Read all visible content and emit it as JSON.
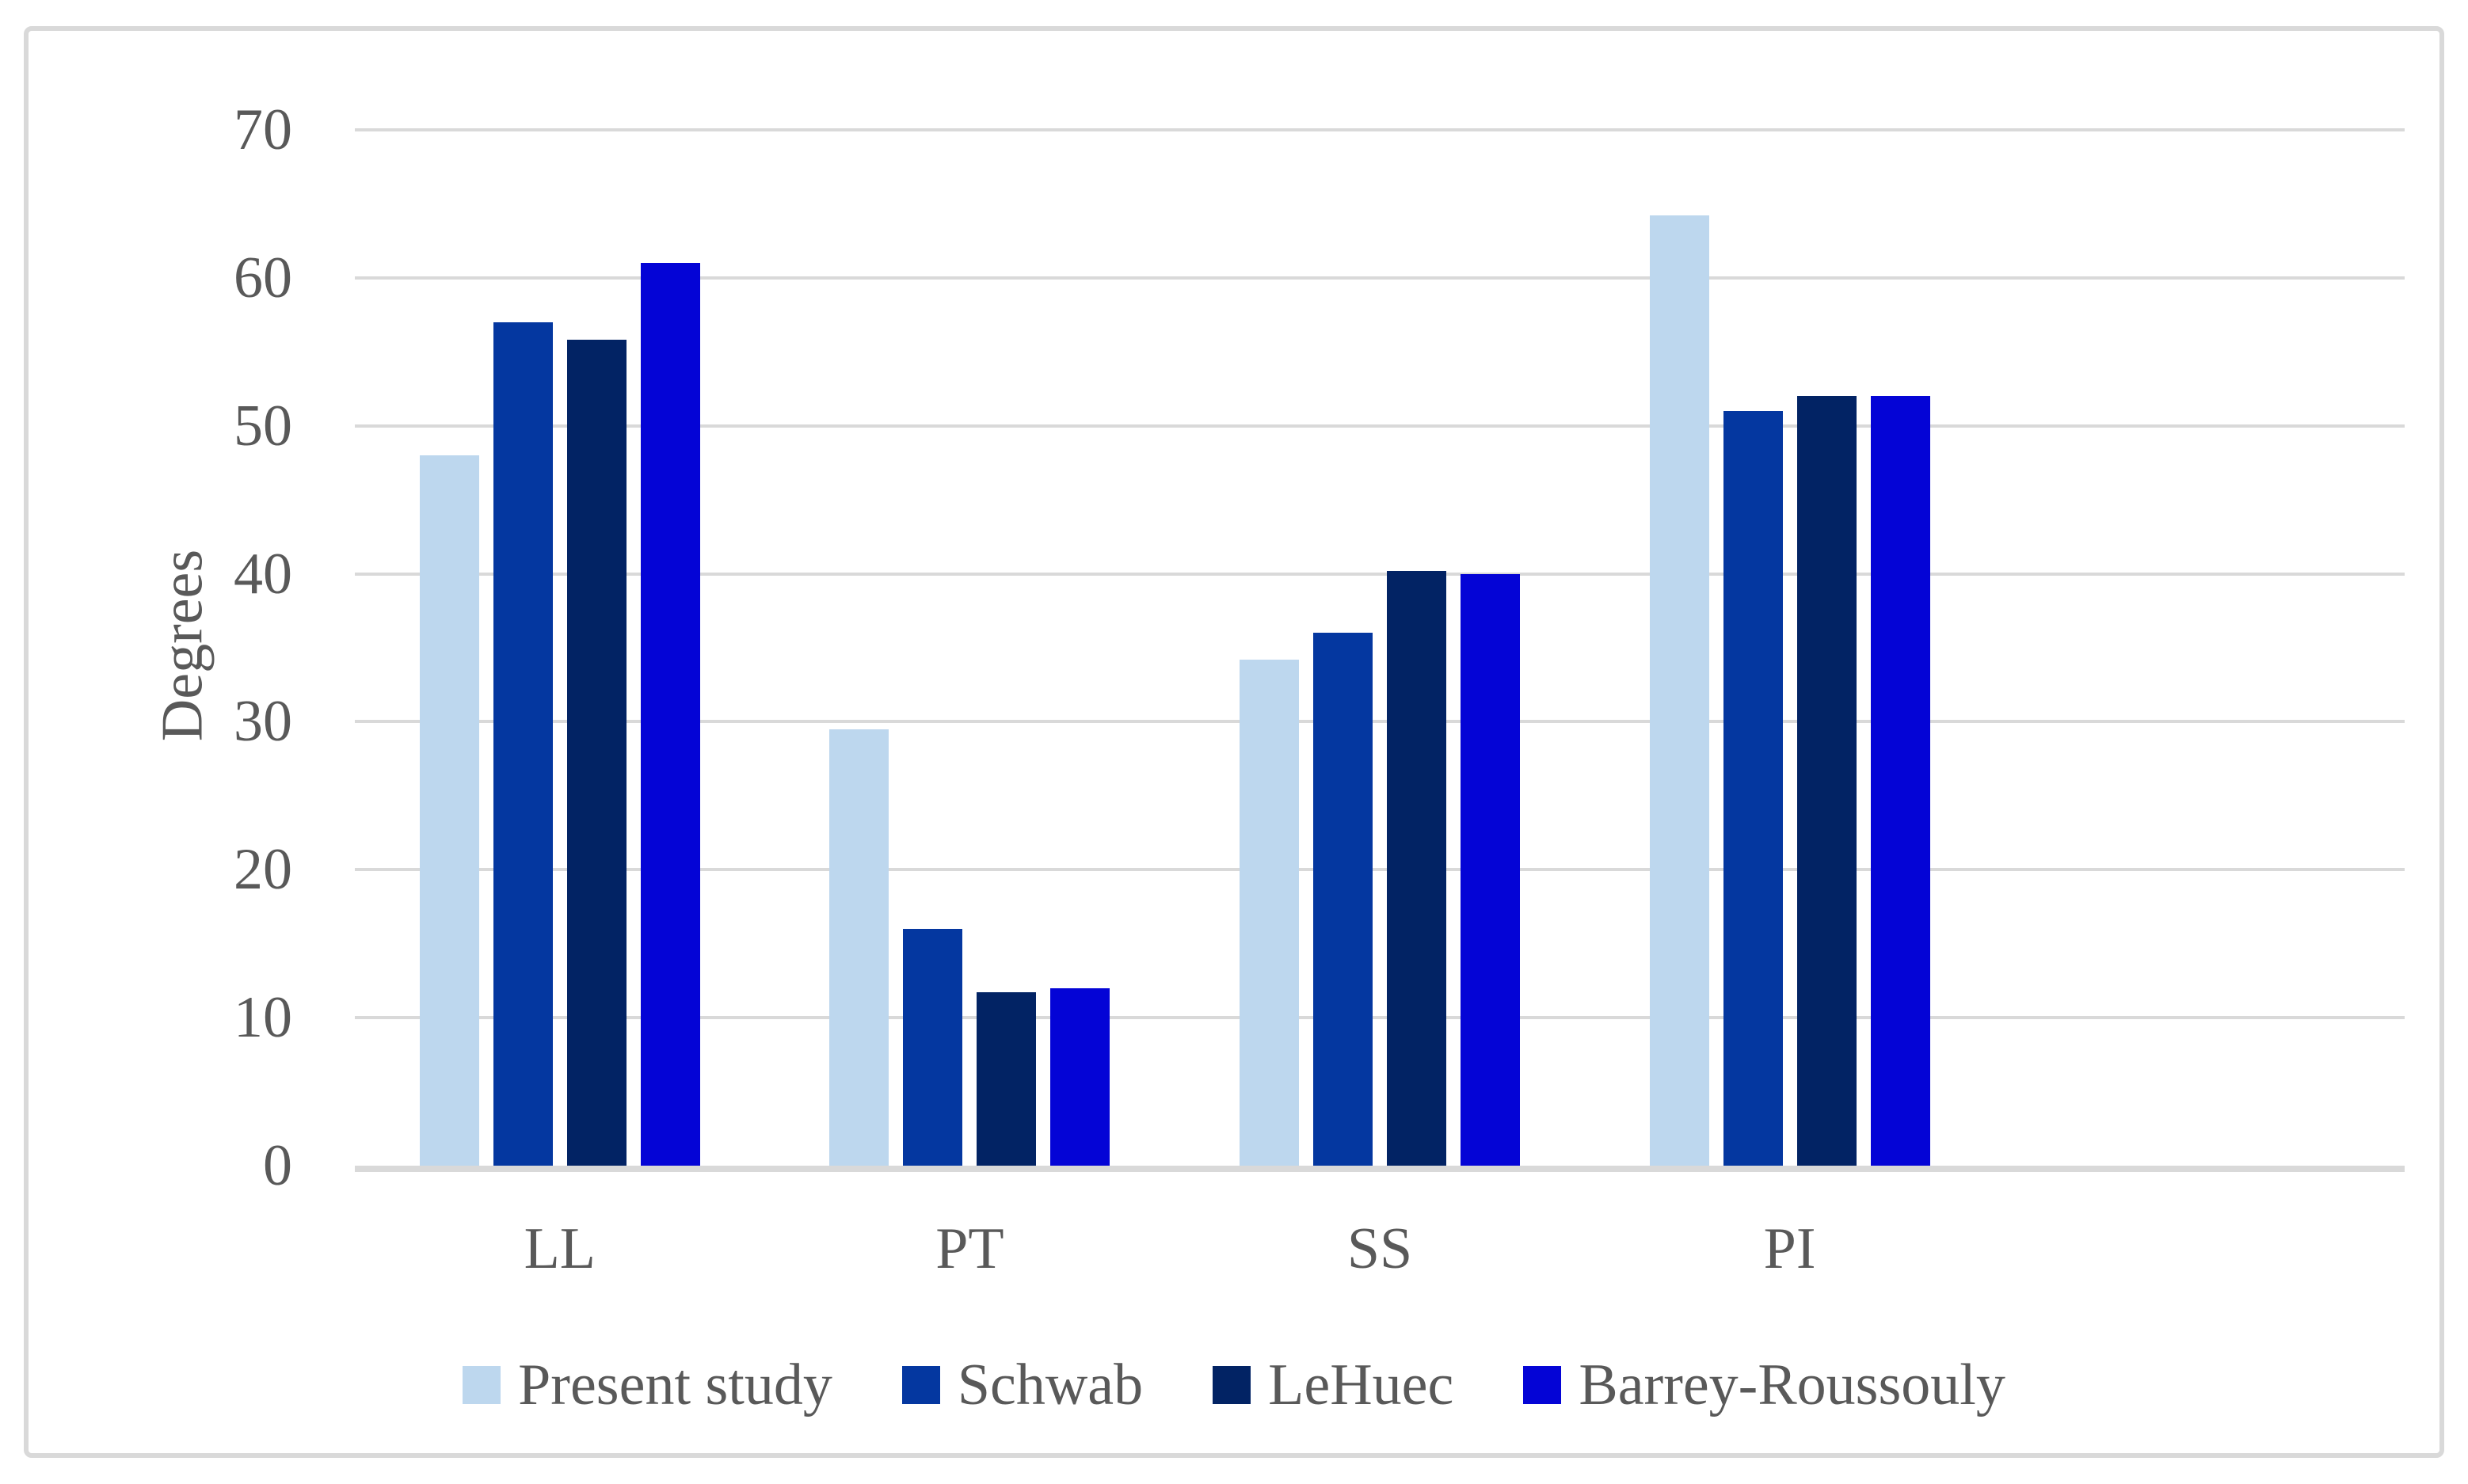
{
  "chart_data": {
    "type": "bar",
    "title": "",
    "xlabel": "",
    "ylabel": "Degrees",
    "ylim": [
      0,
      70
    ],
    "yticks": [
      0,
      10,
      20,
      30,
      40,
      50,
      60,
      70
    ],
    "grid": true,
    "legend_position": "bottom",
    "categories": [
      "LL",
      "PT",
      "SS",
      "PI"
    ],
    "trailing_empty_slots": 1,
    "series": [
      {
        "name": "Present study",
        "color": "#BDD7EE",
        "values": [
          48,
          29.5,
          34.2,
          64.2
        ]
      },
      {
        "name": "Schwab",
        "color": "#0437A0",
        "values": [
          57,
          16,
          36,
          51
        ]
      },
      {
        "name": "LeHuec",
        "color": "#022364",
        "values": [
          55.8,
          11.7,
          40.2,
          52
        ]
      },
      {
        "name": "Barrey-Roussouly",
        "color": "#0404D6",
        "values": [
          61,
          12,
          40,
          52
        ]
      }
    ],
    "colors": {
      "gridline": "#D9D9D9",
      "axis_line": "#D9D9D9",
      "frame_border": "#D9D9D9",
      "text": "#595959",
      "background": "#FFFFFF"
    }
  }
}
